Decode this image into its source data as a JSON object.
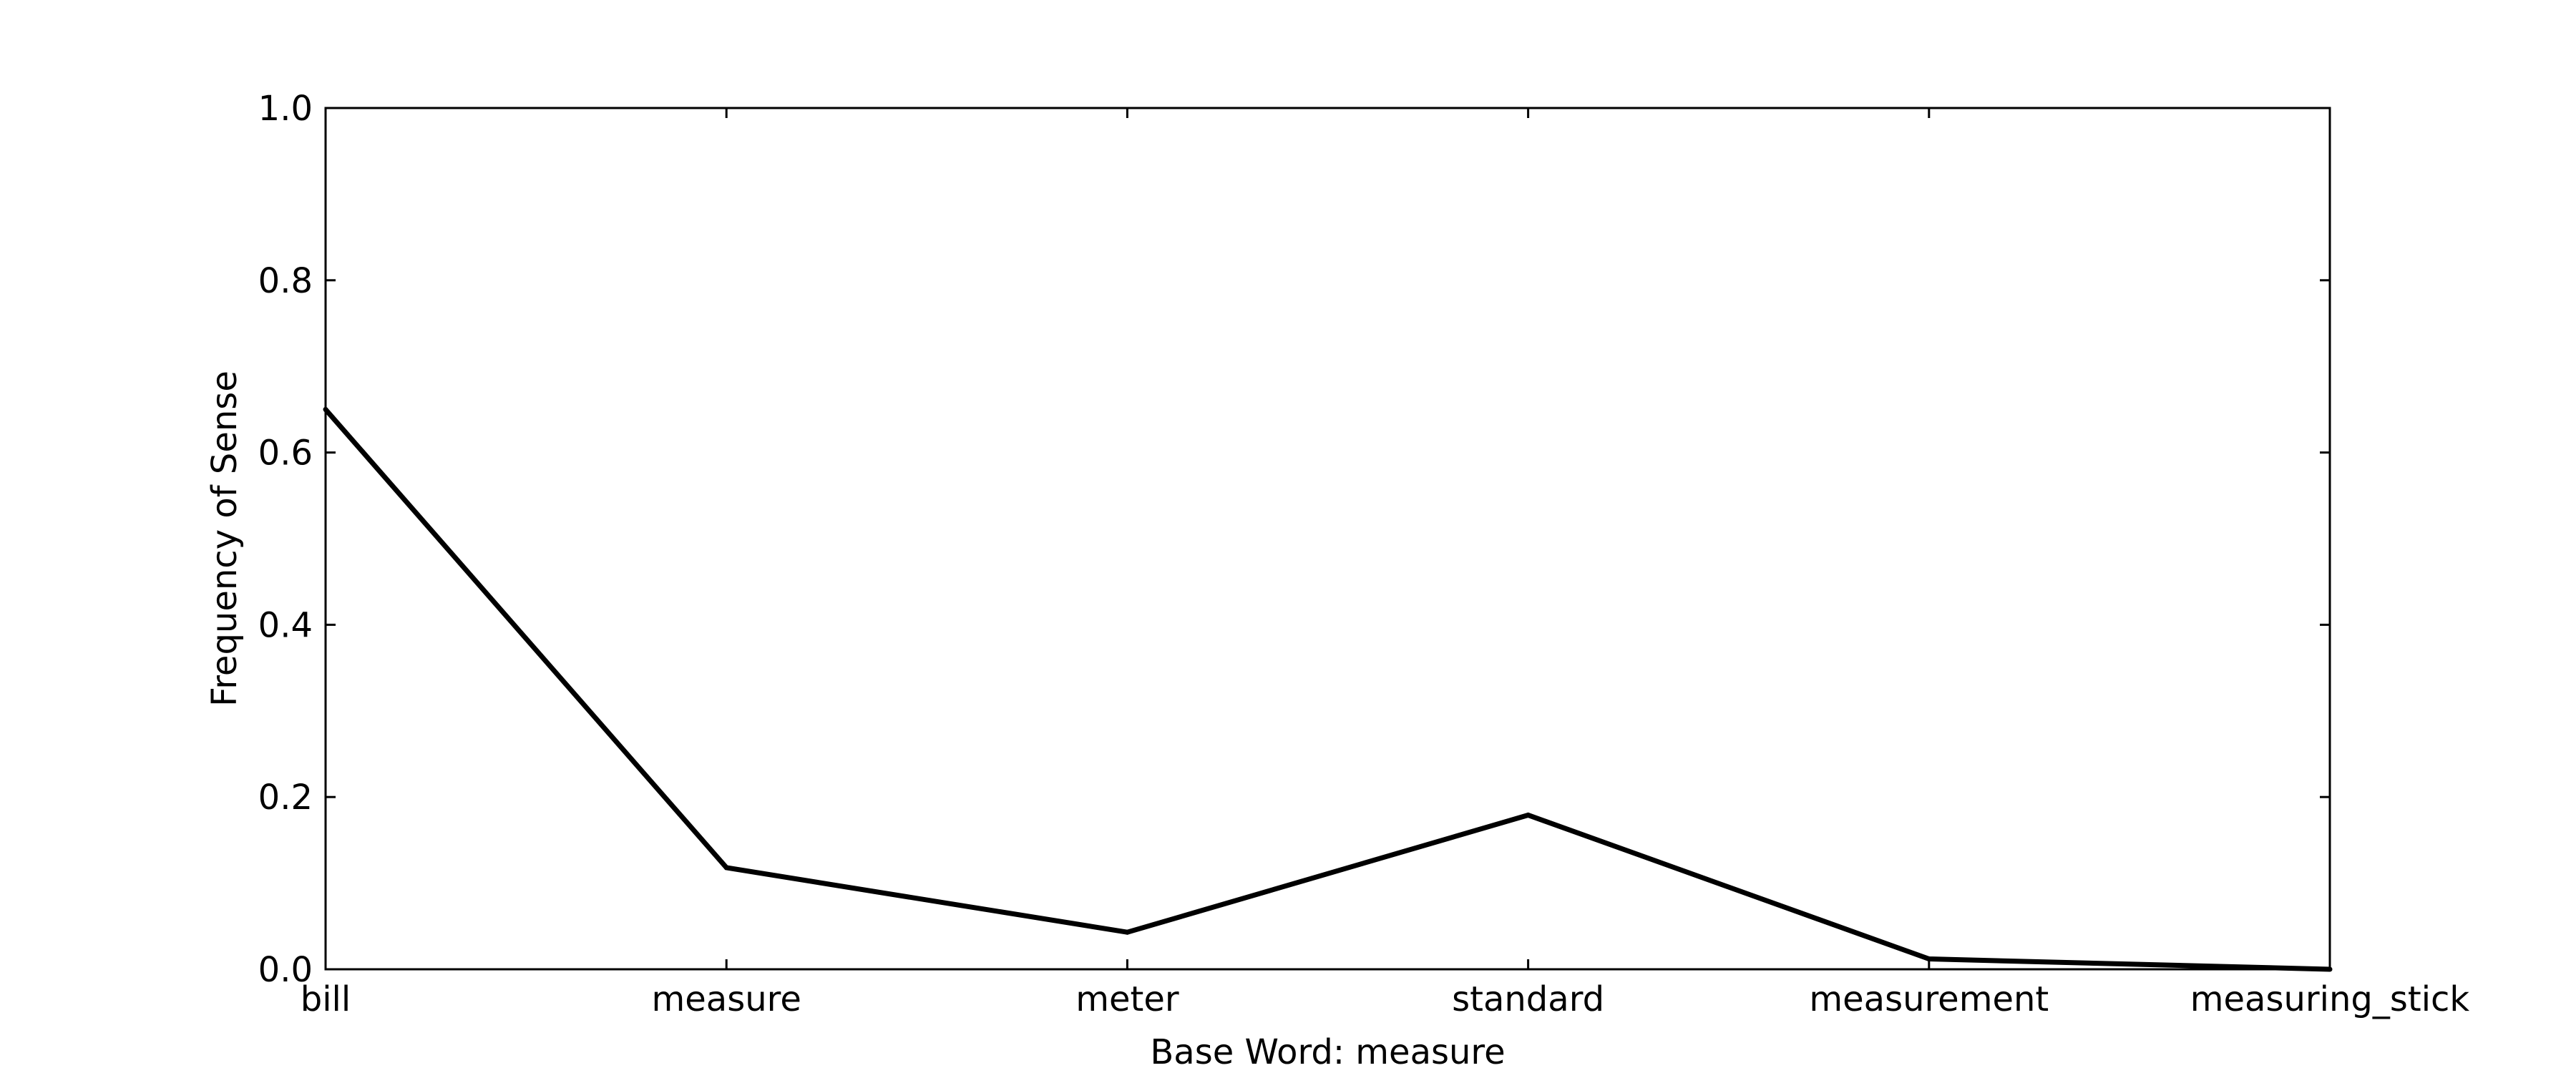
{
  "chart_data": {
    "type": "line",
    "title": "",
    "xlabel": "Base Word: measure",
    "ylabel": "Frequency of Sense",
    "categories": [
      "bill",
      "measure",
      "meter",
      "standard",
      "measurement",
      "measuring_stick"
    ],
    "series": [
      {
        "values": [
          0.65,
          0.118,
          0.043,
          0.179,
          0.012,
          0.0
        ]
      }
    ],
    "ylim": [
      0.0,
      1.0
    ],
    "yticks": [
      0.0,
      0.2,
      0.4,
      0.6,
      0.8,
      1.0
    ],
    "ytick_labels": [
      "0.0",
      "0.2",
      "0.4",
      "0.6",
      "0.8",
      "1.0"
    ],
    "grid": false,
    "legend": "none",
    "line_color": "#000000"
  }
}
